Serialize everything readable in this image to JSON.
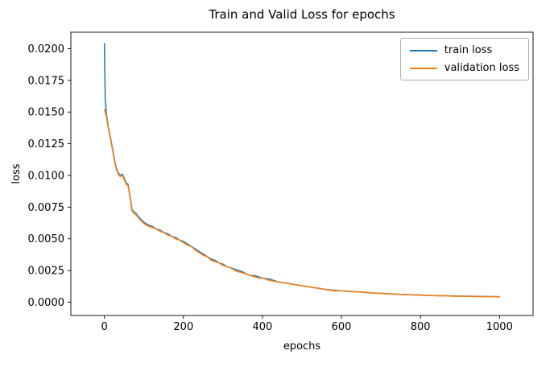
{
  "chart_data": {
    "type": "line",
    "title": "Train and Valid Loss for epochs",
    "xlabel": "epochs",
    "ylabel": "loss",
    "xlim": [
      -85,
      1085
    ],
    "ylim": [
      -0.00105,
      0.0213
    ],
    "xticks": [
      0,
      200,
      400,
      600,
      800,
      1000
    ],
    "yticks": [
      0,
      0.0025,
      0.005,
      0.0075,
      0.01,
      0.0125,
      0.015,
      0.0175,
      0.02
    ],
    "ytick_labels": [
      "0.0000",
      "0.0025",
      "0.0050",
      "0.0075",
      "0.0100",
      "0.0125",
      "0.0150",
      "0.0175",
      "0.0200"
    ],
    "grid": false,
    "legend_position": "upper right",
    "x": [
      0,
      2,
      5,
      10,
      15,
      20,
      25,
      30,
      35,
      40,
      45,
      50,
      55,
      60,
      65,
      70,
      75,
      80,
      90,
      100,
      110,
      120,
      130,
      140,
      150,
      160,
      170,
      180,
      190,
      200,
      210,
      220,
      230,
      240,
      250,
      260,
      270,
      280,
      290,
      300,
      310,
      320,
      330,
      340,
      350,
      360,
      370,
      380,
      390,
      400,
      420,
      440,
      460,
      480,
      500,
      520,
      540,
      560,
      580,
      600,
      620,
      640,
      660,
      680,
      700,
      720,
      740,
      760,
      780,
      800,
      820,
      840,
      860,
      880,
      900,
      920,
      940,
      960,
      980,
      1000
    ],
    "series": [
      {
        "name": "train loss",
        "color": "#1f77b4",
        "values": [
          0.0204,
          0.016,
          0.0148,
          0.0138,
          0.013,
          0.0122,
          0.0113,
          0.0106,
          0.0102,
          0.01,
          0.0101,
          0.0098,
          0.0094,
          0.0093,
          0.0083,
          0.0073,
          0.0071,
          0.007,
          0.0066,
          0.0063,
          0.0061,
          0.006,
          0.0058,
          0.0057,
          0.0055,
          0.0054,
          0.0052,
          0.0051,
          0.0049,
          0.0048,
          0.0046,
          0.0044,
          0.0042,
          0.004,
          0.0038,
          0.0036,
          0.0034,
          0.0033,
          0.0031,
          0.003,
          0.0028,
          0.0027,
          0.0026,
          0.0025,
          0.0024,
          0.0022,
          0.0021,
          0.0021,
          0.002,
          0.0019,
          0.0018,
          0.0016,
          0.0015,
          0.0014,
          0.0013,
          0.0012,
          0.0011,
          0.001,
          0.00095,
          0.0009,
          0.00085,
          0.00082,
          0.00078,
          0.00073,
          0.0007,
          0.00066,
          0.00063,
          0.00061,
          0.00058,
          0.00056,
          0.00054,
          0.00052,
          0.00051,
          0.00049,
          0.00048,
          0.00047,
          0.00046,
          0.00045,
          0.00044,
          0.00043
        ]
      },
      {
        "name": "validation loss",
        "color": "#ff7f0e",
        "values": [
          0.0152,
          0.015,
          0.0146,
          0.0137,
          0.0129,
          0.0121,
          0.0112,
          0.0105,
          0.0101,
          0.0099,
          0.01,
          0.0097,
          0.0093,
          0.0092,
          0.0082,
          0.0072,
          0.007,
          0.0069,
          0.0065,
          0.0062,
          0.006,
          0.0059,
          0.0058,
          0.0056,
          0.0055,
          0.0053,
          0.0052,
          0.005,
          0.0049,
          0.0047,
          0.0045,
          0.0044,
          0.0041,
          0.0039,
          0.0037,
          0.0036,
          0.0033,
          0.0032,
          0.0031,
          0.0029,
          0.0028,
          0.0027,
          0.0025,
          0.0024,
          0.0023,
          0.0022,
          0.0021,
          0.002,
          0.0019,
          0.0019,
          0.0017,
          0.0016,
          0.0015,
          0.0014,
          0.0013,
          0.0012,
          0.0011,
          0.001,
          0.0009,
          0.0009,
          0.00084,
          0.00081,
          0.00077,
          0.00072,
          0.00069,
          0.00065,
          0.00062,
          0.0006,
          0.00057,
          0.00055,
          0.00053,
          0.00051,
          0.0005,
          0.00048,
          0.00047,
          0.00046,
          0.00045,
          0.00044,
          0.00043,
          0.00042
        ]
      }
    ]
  }
}
